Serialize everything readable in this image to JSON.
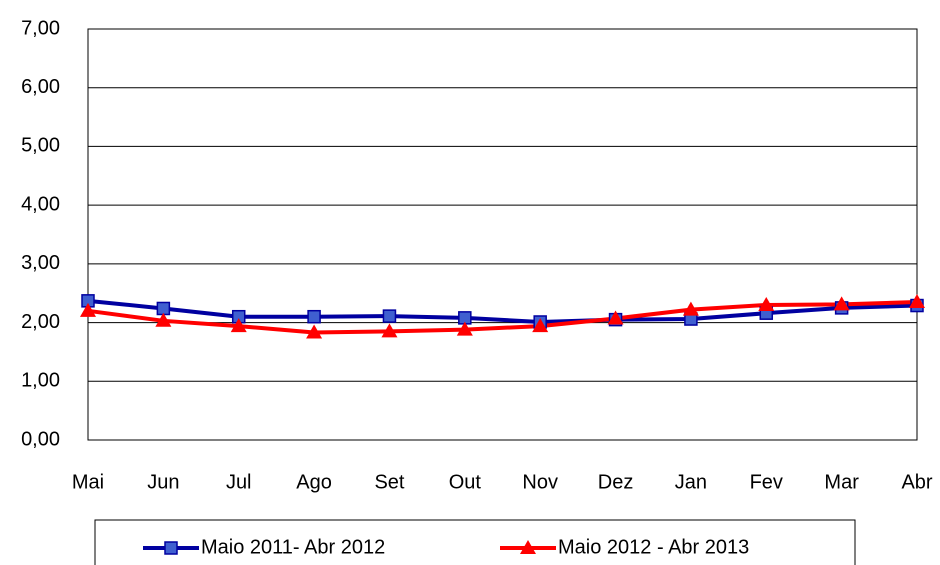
{
  "chart_data": {
    "type": "line",
    "categories": [
      "Mai",
      "Jun",
      "Jul",
      "Ago",
      "Set",
      "Out",
      "Nov",
      "Dez",
      "Jan",
      "Fev",
      "Mar",
      "Abr"
    ],
    "series": [
      {
        "name": "Maio 2011- Abr 2012",
        "color": "#0000a0",
        "marker": "square",
        "marker_color": "#3f5fd0",
        "values": [
          2.37,
          2.24,
          2.1,
          2.1,
          2.11,
          2.08,
          2.01,
          2.05,
          2.06,
          2.16,
          2.25,
          2.29
        ]
      },
      {
        "name": "Maio 2012 - Abr 2013",
        "color": "#ff0000",
        "marker": "triangle",
        "marker_color": "#ff0000",
        "values": [
          2.2,
          2.03,
          1.94,
          1.83,
          1.85,
          1.88,
          1.94,
          2.07,
          2.22,
          2.3,
          2.31,
          2.35
        ]
      }
    ],
    "ylim": [
      0,
      7
    ],
    "yticks": [
      {
        "value": 0,
        "label": "0,00"
      },
      {
        "value": 1,
        "label": "1,00"
      },
      {
        "value": 2,
        "label": "2,00"
      },
      {
        "value": 3,
        "label": "3,00"
      },
      {
        "value": 4,
        "label": "4,00"
      },
      {
        "value": 5,
        "label": "5,00"
      },
      {
        "value": 6,
        "label": "6,00"
      },
      {
        "value": 7,
        "label": "7,00"
      }
    ],
    "grid": true,
    "legend": "bottom"
  }
}
